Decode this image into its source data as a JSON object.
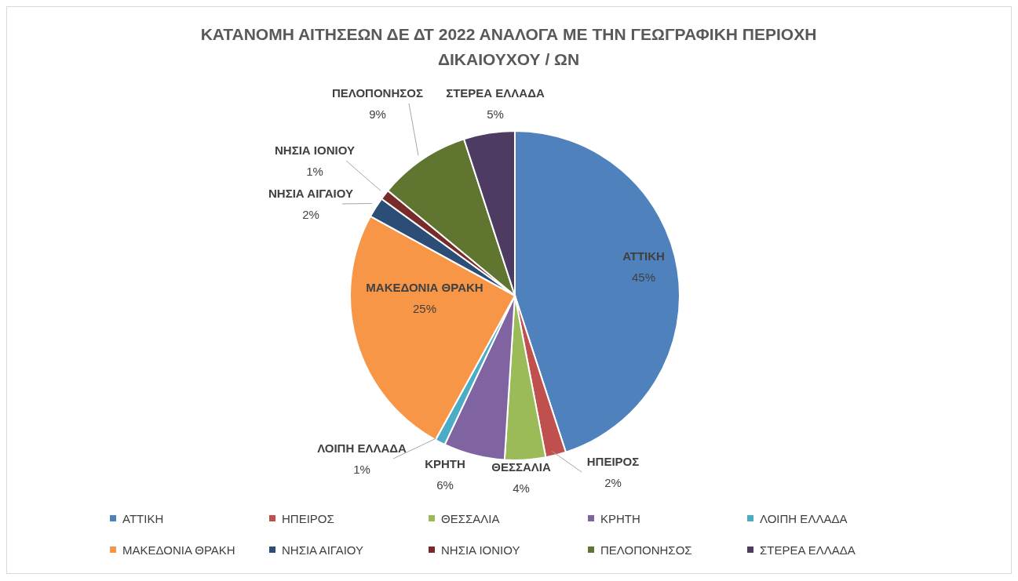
{
  "chart_data": {
    "type": "pie",
    "title": "ΚΑΤΑΝΟΜΗ ΑΙΤΗΣΕΩΝ ΔΕ ΔΤ 2022 ΑΝΑΛΟΓΑ ΜΕ ΤΗΝ ΓΕΩΓΡΑΦΙΚΗ ΠΕΡΙΟΧΗ ΔΙΚΑΙΟΥΧΟΥ / ΩΝ",
    "categories": [
      "ΑΤΤΙΚΗ",
      "ΗΠΕΙΡΟΣ",
      "ΘΕΣΣΑΛΙΑ",
      "ΚΡΗΤΗ",
      "ΛΟΙΠΗ ΕΛΛΑΔΑ",
      "ΜΑΚΕΔΟΝΙΑ ΘΡΑΚΗ",
      "ΝΗΣΙΑ ΑΙΓΑΙΟΥ",
      "ΝΗΣΙΑ ΙΟΝΙΟΥ",
      "ΠΕΛΟΠΟΝΗΣΟΣ",
      "ΣΤΕΡΕΑ ΕΛΛΑΔΑ"
    ],
    "values": [
      45,
      2,
      4,
      6,
      1,
      25,
      2,
      1,
      9,
      5
    ],
    "value_labels": [
      "45%",
      "2%",
      "4%",
      "6%",
      "1%",
      "25%",
      "2%",
      "1%",
      "9%",
      "5%"
    ],
    "colors": [
      "#4f81bd",
      "#c0504d",
      "#9bbb59",
      "#8064a2",
      "#4bacc6",
      "#f79646",
      "#2c4d75",
      "#772c2a",
      "#5f7530",
      "#4d3b62"
    ],
    "legend": "bottom"
  }
}
